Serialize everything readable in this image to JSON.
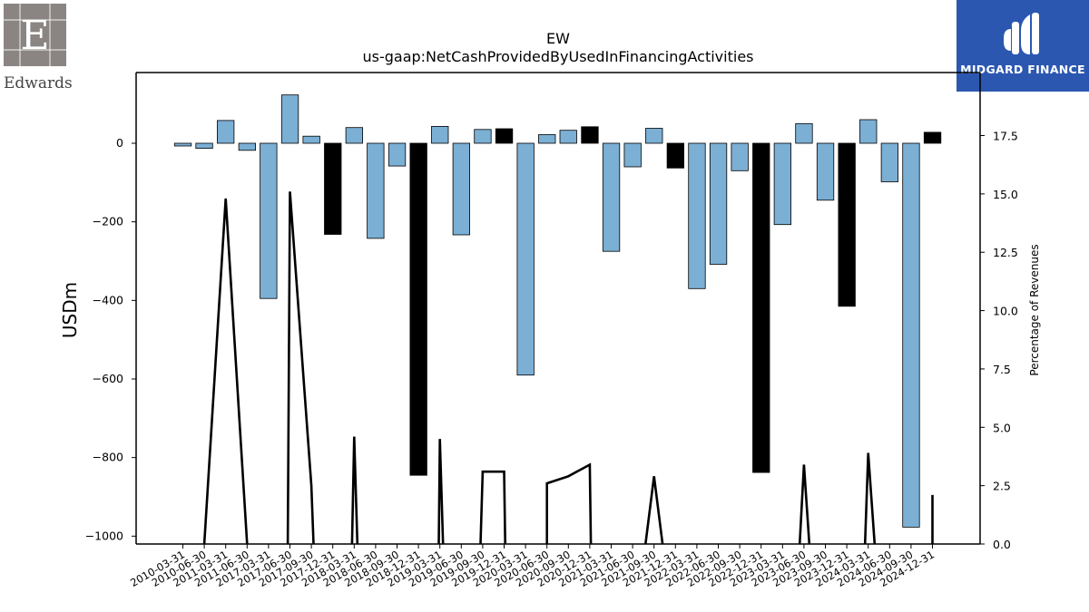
{
  "logos": {
    "left": {
      "text": "Edwards"
    },
    "right": {
      "text": "MIDGARD FINANCE",
      "background": "#2b57b1"
    }
  },
  "chart_data": {
    "type": "bar",
    "title": "EW",
    "subtitle": "us-gaap:NetCashProvidedByUsedInFinancingActivities",
    "ylabel": "USDm",
    "y2label": "Percentage of Revenues",
    "ylim": [
      -1020,
      180
    ],
    "y2lim": [
      0,
      20.2
    ],
    "yticks": [
      -1000,
      -800,
      -600,
      -400,
      -200,
      0
    ],
    "ytick_labels": [
      "−1000",
      "−800",
      "−600",
      "−400",
      "−200",
      "0"
    ],
    "y2ticks": [
      0.0,
      2.5,
      5.0,
      7.5,
      10.0,
      12.5,
      15.0,
      17.5
    ],
    "y2tick_labels": [
      "0.0",
      "2.5",
      "5.0",
      "7.5",
      "10.0",
      "12.5",
      "15.0",
      "17.5"
    ],
    "colors": {
      "quarter": "#7bafd4",
      "year_end": "#000000",
      "line": "#000000"
    },
    "categories": [
      "2010-03-31",
      "2010-06-30",
      "2011-03-31",
      "2011-06-30",
      "2017-03-31",
      "2017-06-30",
      "2017-09-30",
      "2017-12-31",
      "2018-03-31",
      "2018-06-30",
      "2018-09-30",
      "2018-12-31",
      "2019-03-31",
      "2019-06-30",
      "2019-09-30",
      "2019-12-31",
      "2020-03-31",
      "2020-06-30",
      "2020-09-30",
      "2020-12-31",
      "2021-03-31",
      "2021-06-30",
      "2021-09-30",
      "2021-12-31",
      "2022-03-31",
      "2022-06-30",
      "2022-09-30",
      "2022-12-31",
      "2023-03-31",
      "2023-06-30",
      "2023-09-30",
      "2023-12-31",
      "2024-03-31",
      "2024-06-30",
      "2024-09-30",
      "2024-12-31"
    ],
    "series": [
      {
        "values": [
          -7,
          -13,
          58,
          -18,
          -395,
          123,
          18,
          -232,
          40,
          -242,
          -58,
          -845,
          43,
          -233,
          35,
          37,
          -590,
          22,
          33,
          42,
          -275,
          -60,
          38,
          -63,
          -370,
          -308,
          -70,
          -838,
          -207,
          50,
          -145,
          -415,
          60,
          -98,
          -977,
          28
        ],
        "year_end": [
          false,
          false,
          false,
          false,
          false,
          false,
          false,
          true,
          false,
          false,
          false,
          true,
          false,
          false,
          false,
          true,
          false,
          false,
          false,
          true,
          false,
          false,
          false,
          true,
          false,
          false,
          false,
          true,
          false,
          false,
          false,
          true,
          false,
          false,
          false,
          true
        ]
      },
      {
        "line_segments": [
          [
            [
              1,
              0
            ],
            [
              2,
              14.8
            ],
            [
              3,
              0
            ]
          ],
          [
            [
              4.9,
              0
            ],
            [
              5,
              15.1
            ],
            [
              6,
              2.5
            ],
            [
              6.1,
              0
            ]
          ],
          [
            [
              7.9,
              0
            ],
            [
              8,
              4.6
            ],
            [
              8.15,
              0
            ]
          ],
          [
            [
              11.95,
              0
            ],
            [
              12,
              4.5
            ],
            [
              12.15,
              0
            ]
          ],
          [
            [
              13.9,
              0
            ],
            [
              14,
              3.1
            ],
            [
              15,
              3.1
            ],
            [
              15.05,
              0
            ]
          ],
          [
            [
              17,
              0
            ],
            [
              17,
              2.6
            ],
            [
              18,
              2.9
            ],
            [
              19,
              3.4
            ],
            [
              19.05,
              0
            ]
          ],
          [
            [
              21.6,
              0
            ],
            [
              22,
              2.9
            ],
            [
              22.4,
              0
            ]
          ],
          [
            [
              28.8,
              0
            ],
            [
              29,
              3.4
            ],
            [
              29.25,
              0
            ]
          ],
          [
            [
              31.85,
              0
            ],
            [
              32,
              3.9
            ],
            [
              32.3,
              0
            ]
          ],
          [
            [
              35,
              0
            ],
            [
              35,
              2.1
            ]
          ]
        ]
      }
    ]
  }
}
